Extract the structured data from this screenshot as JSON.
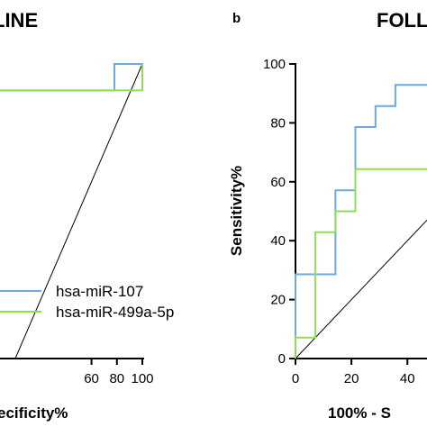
{
  "chart_data": [
    {
      "type": "line",
      "title": "LINE",
      "xlabel": "ecificity%",
      "x_ticks": [
        "60",
        "80",
        "100"
      ],
      "xlim": [
        -12,
        100
      ],
      "ylim": [
        0,
        100
      ],
      "diagonal_reference": true,
      "legend_position": "bottom-right",
      "series": [
        {
          "name": "hsa-miR-107",
          "color": "#6fa8dc",
          "x": [
            -12,
            78,
            78,
            100,
            100
          ],
          "y": [
            91,
            91,
            100,
            100,
            91
          ]
        },
        {
          "name": "hsa-miR-499a-5p",
          "color": "#8ee052",
          "x": [
            -12,
            100,
            100,
            100
          ],
          "y": [
            91,
            91,
            100,
            91
          ]
        }
      ]
    },
    {
      "type": "line",
      "panel_label": "b",
      "title": "FOLL",
      "xlabel": "100% - S",
      "ylabel": "Sensitivity%",
      "x_ticks": [
        "0",
        "20",
        "40"
      ],
      "y_ticks": [
        "0",
        "20",
        "40",
        "60",
        "80",
        "100"
      ],
      "xlim": [
        0,
        47
      ],
      "ylim": [
        0,
        100
      ],
      "diagonal_reference": true,
      "series": [
        {
          "name": "hsa-miR-107",
          "color": "#6fa8dc",
          "x": [
            0,
            0,
            7.1,
            7.1,
            14.3,
            14.3,
            21.4,
            21.4,
            28.6,
            28.6,
            35.7,
            35.7,
            47
          ],
          "y": [
            0,
            28.6,
            28.6,
            28.6,
            28.6,
            57.1,
            57.1,
            78.6,
            78.6,
            85.7,
            85.7,
            92.9,
            92.9
          ]
        },
        {
          "name": "hsa-miR-499a-5p",
          "color": "#8ee052",
          "x": [
            0,
            0,
            7.1,
            7.1,
            14.3,
            14.3,
            21.4,
            21.4,
            47
          ],
          "y": [
            0,
            7.1,
            7.1,
            42.9,
            42.9,
            50,
            50,
            64.3,
            64.3
          ]
        }
      ]
    }
  ]
}
